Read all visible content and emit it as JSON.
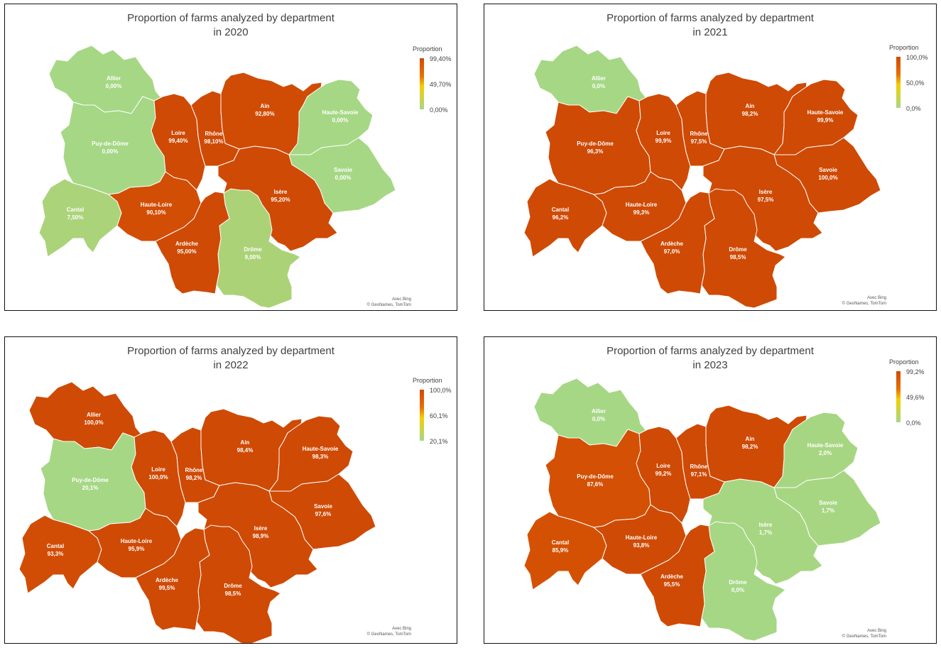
{
  "colors": {
    "low": "#a6d785",
    "mid": "#f2d000",
    "high": "#cf4a05"
  },
  "panels": [
    {
      "title_line1": "Proportion of farms analyzed by department",
      "title_line2": "in 2020",
      "legend": {
        "title": "Proportion",
        "max": "99,40%",
        "mid": "49,70%",
        "min": "0,00%"
      },
      "credit_line1": "Avec Bing",
      "credit_line2": "© GeoNames, TomTom",
      "departments": [
        {
          "name": "Allier",
          "value": "0,00%",
          "proportion": 0.0
        },
        {
          "name": "Puy-de-Dôme",
          "value": "0,00%",
          "proportion": 0.0
        },
        {
          "name": "Cantal",
          "value": "7,50%",
          "proportion": 7.5
        },
        {
          "name": "Haute-Loire",
          "value": "90,10%",
          "proportion": 90.1
        },
        {
          "name": "Loire",
          "value": "99,40%",
          "proportion": 99.4
        },
        {
          "name": "Rhône",
          "value": "98,10%",
          "proportion": 98.1
        },
        {
          "name": "Ain",
          "value": "92,80%",
          "proportion": 92.8
        },
        {
          "name": "Haute-Savoie",
          "value": "0,00%",
          "proportion": 0.0
        },
        {
          "name": "Savoie",
          "value": "0,00%",
          "proportion": 0.0
        },
        {
          "name": "Isère",
          "value": "95,20%",
          "proportion": 95.2
        },
        {
          "name": "Drôme",
          "value": "9,00%",
          "proportion": 9.0
        },
        {
          "name": "Ardèche",
          "value": "95,00%",
          "proportion": 95.0
        }
      ]
    },
    {
      "title_line1": "Proportion of farms analyzed by department",
      "title_line2": "in 2021",
      "legend": {
        "title": "Proportion",
        "max": "100,0%",
        "mid": "50,0%",
        "min": "0,0%"
      },
      "credit_line1": "Avec Bing",
      "credit_line2": "© GeoNames, TomTom",
      "departments": [
        {
          "name": "Allier",
          "value": "0,0%",
          "proportion": 0.0
        },
        {
          "name": "Puy-de-Dôme",
          "value": "96,3%",
          "proportion": 96.3
        },
        {
          "name": "Cantal",
          "value": "96,2%",
          "proportion": 96.2
        },
        {
          "name": "Haute-Loire",
          "value": "99,3%",
          "proportion": 99.3
        },
        {
          "name": "Loire",
          "value": "99,9%",
          "proportion": 99.9
        },
        {
          "name": "Rhône",
          "value": "97,5%",
          "proportion": 97.5
        },
        {
          "name": "Ain",
          "value": "98,2%",
          "proportion": 98.2
        },
        {
          "name": "Haute-Savoie",
          "value": "99,9%",
          "proportion": 99.9
        },
        {
          "name": "Savoie",
          "value": "100,0%",
          "proportion": 100.0
        },
        {
          "name": "Isère",
          "value": "97,5%",
          "proportion": 97.5
        },
        {
          "name": "Drôme",
          "value": "98,5%",
          "proportion": 98.5
        },
        {
          "name": "Ardèche",
          "value": "97,0%",
          "proportion": 97.0
        }
      ]
    },
    {
      "title_line1": "Proportion of farms analyzed by department",
      "title_line2": "in 2022",
      "legend": {
        "title": "Proportion",
        "max": "100,0%",
        "mid": "60,1%",
        "min": "20,1%"
      },
      "credit_line1": "Avec Bing",
      "credit_line2": "© GeoNames, TomTom",
      "departments": [
        {
          "name": "Allier",
          "value": "100,0%",
          "proportion": 100.0
        },
        {
          "name": "Puy-de-Dôme",
          "value": "20,1%",
          "proportion": 20.1
        },
        {
          "name": "Cantal",
          "value": "93,3%",
          "proportion": 93.3
        },
        {
          "name": "Haute-Loire",
          "value": "95,9%",
          "proportion": 95.9
        },
        {
          "name": "Loire",
          "value": "100,0%",
          "proportion": 100.0
        },
        {
          "name": "Rhône",
          "value": "98,2%",
          "proportion": 98.2
        },
        {
          "name": "Ain",
          "value": "98,4%",
          "proportion": 98.4
        },
        {
          "name": "Haute-Savoie",
          "value": "98,3%",
          "proportion": 98.3
        },
        {
          "name": "Savoie",
          "value": "97,6%",
          "proportion": 97.6
        },
        {
          "name": "Isère",
          "value": "98,9%",
          "proportion": 98.9
        },
        {
          "name": "Drôme",
          "value": "98,5%",
          "proportion": 98.5
        },
        {
          "name": "Ardèche",
          "value": "99,5%",
          "proportion": 99.5
        }
      ]
    },
    {
      "title_line1": "Proportion of farms analyzed by department",
      "title_line2": "in 2023",
      "legend": {
        "title": "Proportion",
        "max": "99,2%",
        "mid": "49,6%",
        "min": "0,0%"
      },
      "credit_line1": "Avec Bing",
      "credit_line2": "© GeoNames, TomTom",
      "departments": [
        {
          "name": "Allier",
          "value": "0,0%",
          "proportion": 0.0
        },
        {
          "name": "Puy-de-Dôme",
          "value": "87,6%",
          "proportion": 87.6
        },
        {
          "name": "Cantal",
          "value": "85,9%",
          "proportion": 85.9
        },
        {
          "name": "Haute-Loire",
          "value": "93,8%",
          "proportion": 93.8
        },
        {
          "name": "Loire",
          "value": "99,2%",
          "proportion": 99.2
        },
        {
          "name": "Rhône",
          "value": "97,1%",
          "proportion": 97.1
        },
        {
          "name": "Ain",
          "value": "98,2%",
          "proportion": 98.2
        },
        {
          "name": "Haute-Savoie",
          "value": "2,0%",
          "proportion": 2.0
        },
        {
          "name": "Savoie",
          "value": "1,7%",
          "proportion": 1.7
        },
        {
          "name": "Isère",
          "value": "1,7%",
          "proportion": 1.7
        },
        {
          "name": "Drôme",
          "value": "0,0%",
          "proportion": 0.0
        },
        {
          "name": "Ardèche",
          "value": "95,5%",
          "proportion": 95.5
        }
      ]
    }
  ]
}
